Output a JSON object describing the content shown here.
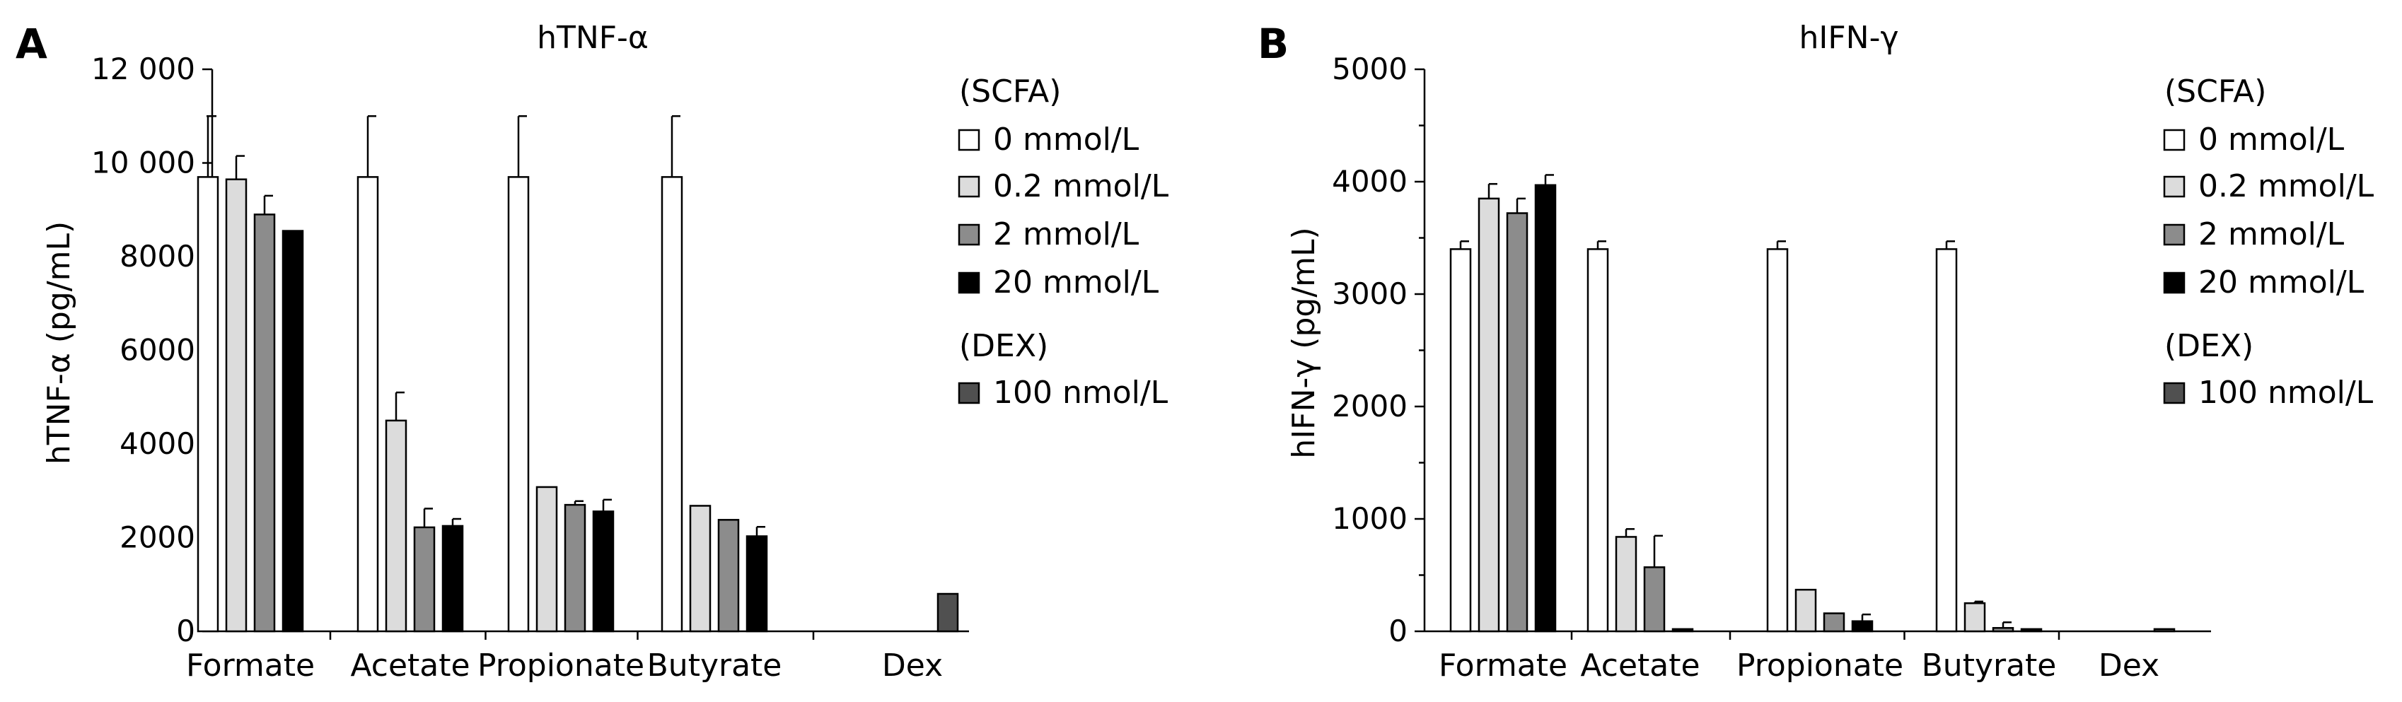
{
  "chart_data": [
    {
      "panel": "A",
      "type": "bar",
      "title": "hTNF-α",
      "ylabel": "hTNF-α (pg/mL)",
      "xlabel": "",
      "ylim": [
        0,
        12000
      ],
      "yticks": [
        0,
        2000,
        4000,
        6000,
        8000,
        10000,
        12000
      ],
      "ytick_labels": [
        "0",
        "2000",
        "4000",
        "6000",
        "8000",
        "10 000",
        "12 000"
      ],
      "grid": false,
      "legend_position": "right",
      "legend_groups": [
        {
          "header": "(SCFA)",
          "items": [
            {
              "label": "0 mmol/L",
              "color": "#ffffff"
            },
            {
              "label": "0.2 mmol/L",
              "color": "#dcdcdc"
            },
            {
              "label": "2 mmol/L",
              "color": "#8c8c8c"
            },
            {
              "label": "20 mmol/L",
              "color": "#000000"
            }
          ]
        },
        {
          "header": "(DEX)",
          "items": [
            {
              "label": "100 nmol/L",
              "color": "#505050"
            }
          ]
        }
      ],
      "categories": [
        "Formate",
        "Acetate",
        "Propionate",
        "Butyrate",
        "Dex"
      ],
      "series": [
        {
          "name": "0 mmol/L",
          "color": "#ffffff",
          "values": [
            9700,
            9700,
            9700,
            9700,
            0
          ],
          "errors": [
            1300,
            1300,
            1300,
            1300,
            0
          ]
        },
        {
          "name": "0.2 mmol/L",
          "color": "#dcdcdc",
          "values": [
            9650,
            4500,
            3080,
            2680,
            0
          ],
          "errors": [
            500,
            600,
            0,
            0,
            0
          ]
        },
        {
          "name": "2 mmol/L",
          "color": "#8c8c8c",
          "values": [
            8900,
            2220,
            2700,
            2380,
            0
          ],
          "errors": [
            400,
            400,
            80,
            0,
            0
          ]
        },
        {
          "name": "20 mmol/L",
          "color": "#000000",
          "values": [
            8550,
            2250,
            2560,
            2030,
            0
          ],
          "errors": [
            0,
            150,
            250,
            200,
            0
          ]
        },
        {
          "name": "100 nmol/L",
          "color": "#505050",
          "values": [
            0,
            0,
            0,
            0,
            800
          ],
          "errors": [
            0,
            0,
            0,
            0,
            0
          ]
        }
      ]
    },
    {
      "panel": "B",
      "type": "bar",
      "title": "hIFN-γ",
      "ylabel": "hIFN-γ (pg/mL)",
      "xlabel": "",
      "ylim": [
        0,
        5000
      ],
      "yticks": [
        0,
        1000,
        2000,
        3000,
        4000,
        5000
      ],
      "ytick_labels": [
        "0",
        "1000",
        "2000",
        "3000",
        "4000",
        "5000"
      ],
      "grid": false,
      "legend_position": "right",
      "legend_groups": [
        {
          "header": "(SCFA)",
          "items": [
            {
              "label": "0 mmol/L",
              "color": "#ffffff"
            },
            {
              "label": "0.2 mmol/L",
              "color": "#dcdcdc"
            },
            {
              "label": "2 mmol/L",
              "color": "#8c8c8c"
            },
            {
              "label": "20 mmol/L",
              "color": "#000000"
            }
          ]
        },
        {
          "header": "(DEX)",
          "items": [
            {
              "label": "100 nmol/L",
              "color": "#505050"
            }
          ]
        }
      ],
      "categories": [
        "Formate",
        "Acetate",
        "Propionate",
        "Butyrate",
        "Dex"
      ],
      "series": [
        {
          "name": "0 mmol/L",
          "color": "#ffffff",
          "values": [
            3400,
            3400,
            3400,
            3400,
            0
          ],
          "errors": [
            70,
            70,
            70,
            70,
            0
          ]
        },
        {
          "name": "0.2 mmol/L",
          "color": "#dcdcdc",
          "values": [
            3850,
            840,
            370,
            250,
            0
          ],
          "errors": [
            130,
            70,
            0,
            15,
            0
          ]
        },
        {
          "name": "2 mmol/L",
          "color": "#8c8c8c",
          "values": [
            3720,
            570,
            160,
            30,
            0
          ],
          "errors": [
            130,
            280,
            0,
            50,
            0
          ]
        },
        {
          "name": "20 mmol/L",
          "color": "#000000",
          "values": [
            3970,
            20,
            90,
            20,
            0
          ],
          "errors": [
            90,
            0,
            60,
            0,
            0
          ]
        },
        {
          "name": "100 nmol/L",
          "color": "#505050",
          "values": [
            0,
            0,
            0,
            0,
            20
          ],
          "errors": [
            0,
            0,
            0,
            0,
            0
          ]
        }
      ]
    }
  ]
}
